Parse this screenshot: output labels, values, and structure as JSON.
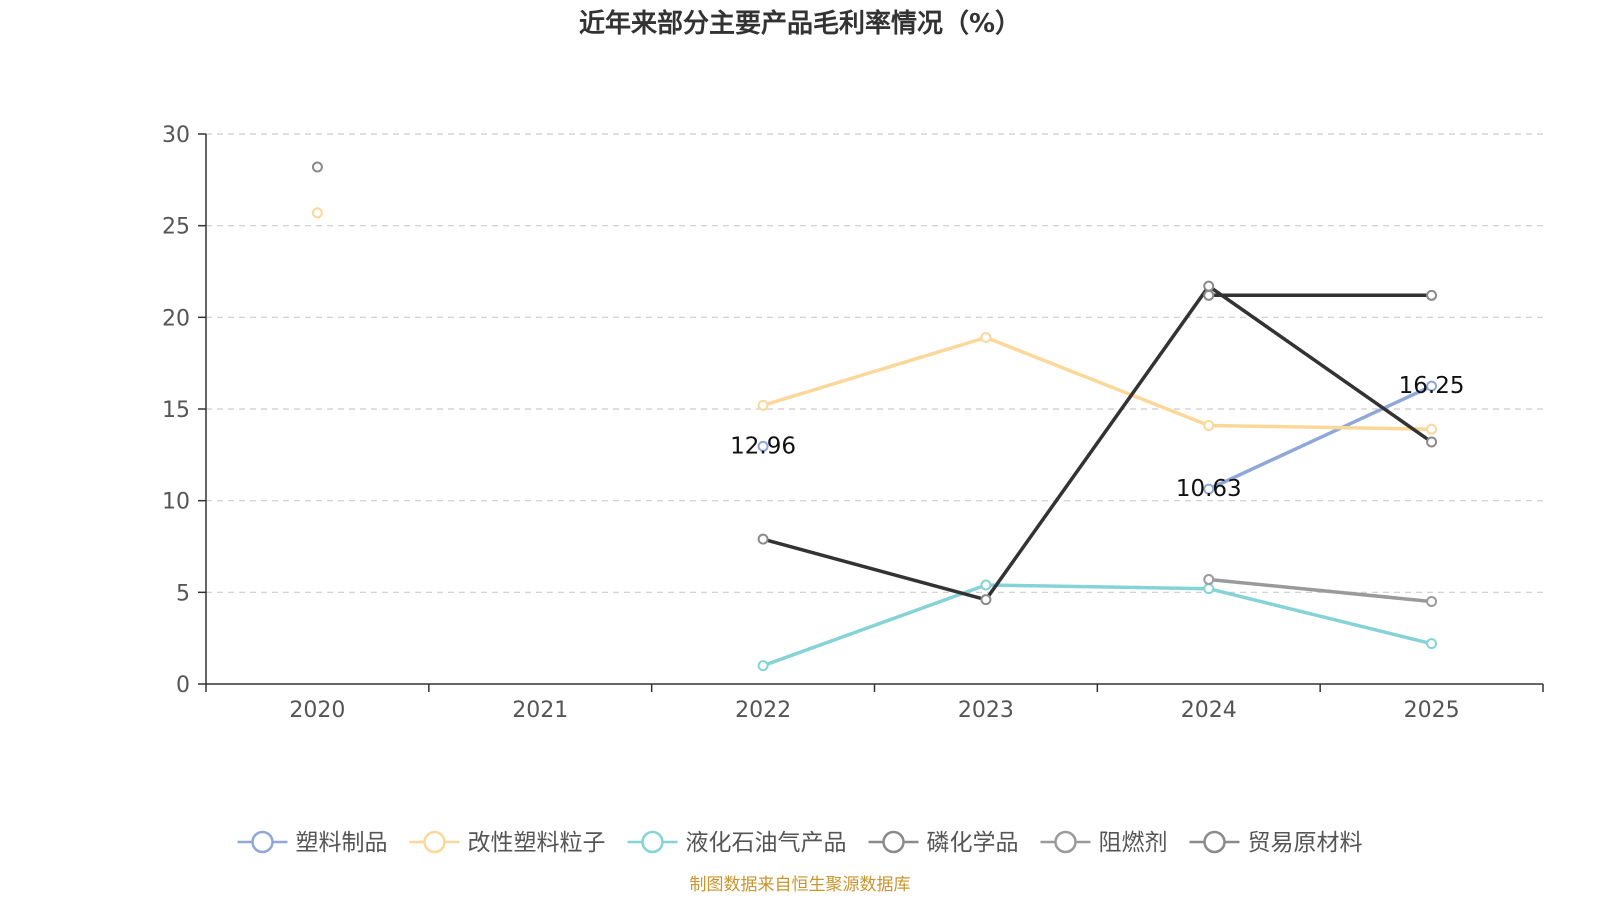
{
  "chart_data": {
    "type": "line",
    "title": "近年来部分主要产品毛利率情况（%）",
    "xlabel": "",
    "ylabel": "",
    "categories": [
      "2020",
      "2021",
      "2022",
      "2023",
      "2024",
      "2025"
    ],
    "ylim": [
      0,
      30
    ],
    "yticks": [
      0,
      5,
      10,
      15,
      20,
      25,
      30
    ],
    "grid": true,
    "legend_position": "bottom",
    "series": [
      {
        "name": "塑料制品",
        "color": "#8fa8d8",
        "values": [
          null,
          null,
          12.96,
          null,
          10.63,
          16.25
        ],
        "data_labels": [
          null,
          null,
          "12.96",
          null,
          "10.63",
          "16.25"
        ]
      },
      {
        "name": "改性塑料粒子",
        "color": "#fbd89a",
        "values": [
          25.7,
          null,
          15.2,
          18.9,
          14.1,
          13.9
        ],
        "data_labels": [
          null,
          null,
          null,
          null,
          null,
          null
        ]
      },
      {
        "name": "液化石油气产品",
        "color": "#86d3d6",
        "values": [
          null,
          null,
          1.0,
          5.4,
          5.2,
          2.2
        ],
        "data_labels": [
          null,
          null,
          null,
          null,
          null,
          null
        ]
      },
      {
        "name": "磷化学品",
        "color": "#333333",
        "values": [
          null,
          null,
          7.9,
          4.6,
          21.7,
          13.2
        ],
        "data_labels": [
          null,
          null,
          null,
          null,
          null,
          null
        ]
      },
      {
        "name": "阻燃剂",
        "color": "#9a9a9a",
        "values": [
          null,
          null,
          null,
          null,
          5.7,
          4.5
        ],
        "data_labels": [
          null,
          null,
          null,
          null,
          null,
          null
        ]
      },
      {
        "name": "贸易原材料",
        "color": "#333333",
        "values": [
          28.2,
          null,
          null,
          null,
          21.2,
          21.2
        ],
        "data_labels": [
          null,
          null,
          null,
          null,
          null,
          null
        ]
      }
    ],
    "legend": [
      {
        "name": "塑料制品",
        "color": "#8fa8d8"
      },
      {
        "name": "改性塑料粒子",
        "color": "#fbd89a"
      },
      {
        "name": "液化石油气产品",
        "color": "#86d3d6"
      },
      {
        "name": "磷化学品",
        "color": "#8a8a8a"
      },
      {
        "name": "阻燃剂",
        "color": "#9a9a9a"
      },
      {
        "name": "贸易原材料",
        "color": "#8a8a8a"
      }
    ]
  },
  "footer": {
    "source": "制图数据来自恒生聚源数据库",
    "color": "#c9952f"
  },
  "colors": {
    "axis": "#333333",
    "grid": "#cccccc",
    "tick_text": "#555555",
    "title_text": "#333333",
    "label_text": "#111111"
  }
}
